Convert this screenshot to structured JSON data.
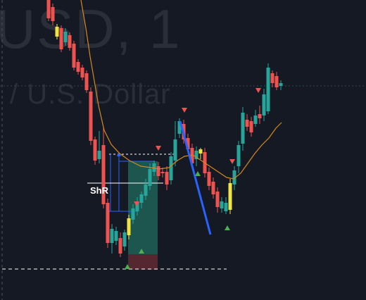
{
  "watermark": {
    "symbol": "USD, 1",
    "description": "/ U.S. Dollar"
  },
  "annotations": {
    "snr_label": "ShR"
  },
  "colors": {
    "background": "#151924",
    "bull": "#26a69a",
    "bear": "#ef5350",
    "highlight": "#f0e442",
    "moving_average": "#d4891e",
    "trendline": "#2962ff",
    "long_position_profit": "#1f6b5c",
    "long_position_stop": "#5c2a33",
    "signal_up": "#4caf50",
    "signal_down": "#ef5350",
    "gridline": "#2a2e39"
  },
  "drawings": [
    {
      "type": "trend-line",
      "color": "#2962ff"
    },
    {
      "type": "long-position",
      "colors": [
        "#1f6b5c",
        "#5c2a33"
      ]
    },
    {
      "type": "horizontal-ray",
      "label": "ShR"
    },
    {
      "type": "horizontal-dashed-line"
    },
    {
      "type": "price-range-measure",
      "color": "#2962ff"
    }
  ],
  "indicators": [
    {
      "type": "moving-average",
      "color": "#d4891e"
    },
    {
      "type": "buy-sell-signal-arrows",
      "up_color": "#4caf50",
      "down_color": "#ef5350"
    }
  ]
}
